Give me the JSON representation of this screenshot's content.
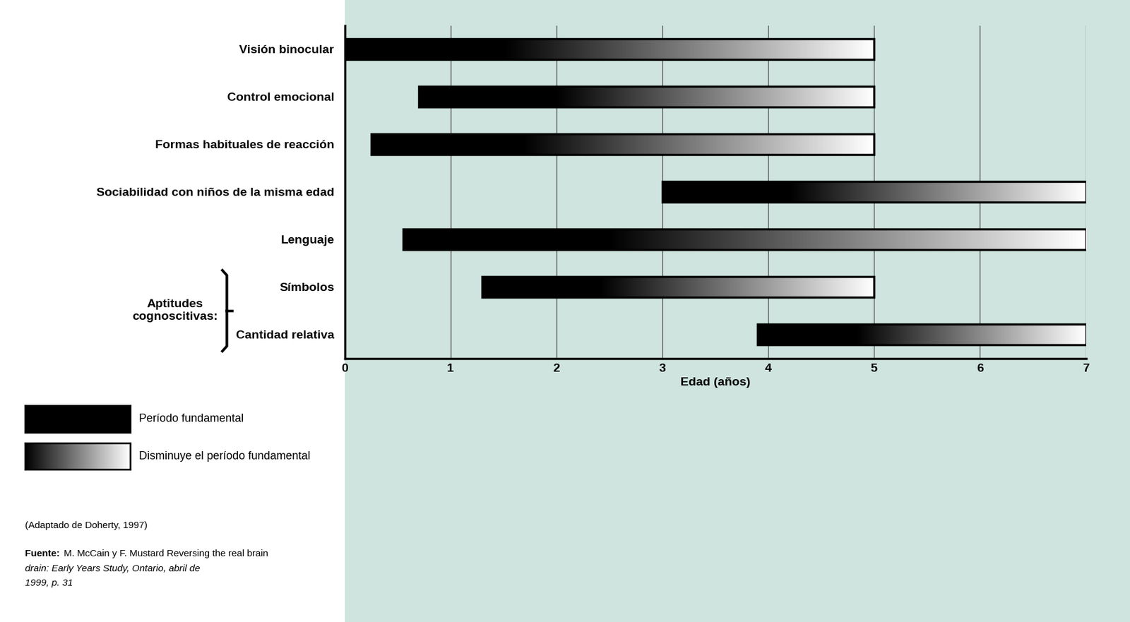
{
  "chart_data": {
    "type": "range_bar",
    "orientation": "horizontal",
    "categories": [
      "Visión binocular",
      "Control emocional",
      "Formas habituales de reacción",
      "Sociabilidad con niños de la misma edad",
      "Lenguaje",
      "Símbolos",
      "Cantidad relativa"
    ],
    "start": [
      0,
      0.7,
      0.25,
      3,
      0.55,
      1.3,
      3.9
    ],
    "end": [
      5,
      5,
      5,
      7,
      7,
      5,
      7
    ],
    "xlabel": "Edad (años)",
    "xlim": [
      0,
      7
    ],
    "xticks": [
      0,
      1,
      2,
      3,
      4,
      5,
      6,
      7
    ],
    "grid": true,
    "series": [
      {
        "name": "Período fundamental",
        "color": "#000000"
      },
      {
        "name": "Disminuye el período fundamental",
        "color": "#ffffff"
      }
    ],
    "groups": [
      {
        "label": "Aptitudes cognoscitivas:",
        "categories": [
          "Símbolos",
          "Cantidad relativa"
        ]
      }
    ],
    "notes": [
      "(Adaptado de Doherty, 1997)"
    ],
    "source_label": "Fuente:",
    "source": "M. McCain y F. Mustard Reversing the real brain drain: Early Years Study, Ontario, abril de 1999, p. 31"
  }
}
